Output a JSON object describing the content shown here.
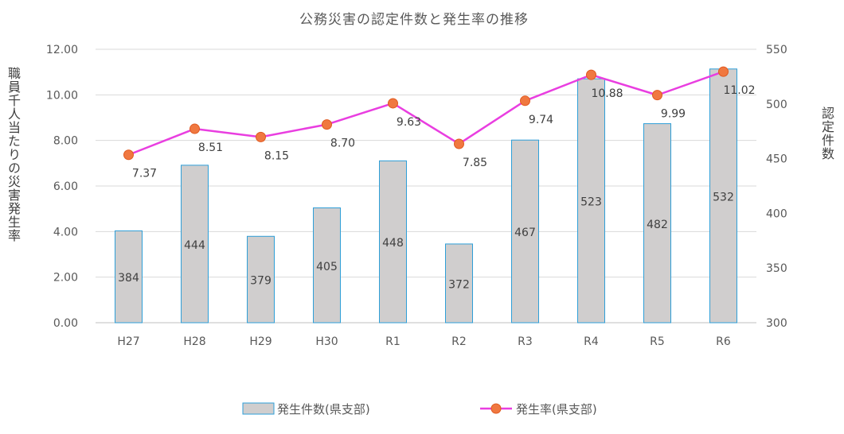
{
  "chart_data": {
    "type": "bar+line",
    "title": "公務災害の認定件数と発生率の推移",
    "categories": [
      "H27",
      "H28",
      "H29",
      "H30",
      "R1",
      "R2",
      "R3",
      "R4",
      "R5",
      "R6"
    ],
    "series": [
      {
        "name": "発生件数(県支部)",
        "type": "bar",
        "axis": "right",
        "values": [
          384,
          444,
          379,
          405,
          448,
          372,
          467,
          523,
          482,
          532
        ],
        "labels": [
          "384",
          "444",
          "379",
          "405",
          "448",
          "372",
          "467",
          "523",
          "482",
          "532"
        ],
        "color": "#d0cece",
        "border_color": "#2e9fd8"
      },
      {
        "name": "発生率(県支部)",
        "type": "line",
        "axis": "left",
        "values": [
          7.37,
          8.51,
          8.15,
          8.7,
          9.63,
          7.85,
          9.74,
          10.88,
          9.99,
          11.02
        ],
        "labels": [
          "7.37",
          "8.51",
          "8.15",
          "8.70",
          "9.63",
          "7.85",
          "9.74",
          "10.88",
          "9.99",
          "11.02"
        ],
        "line_color": "#e93ee0",
        "marker_color": "#f07840",
        "marker_border": "#e05a20"
      }
    ],
    "left_axis": {
      "label": "職員千人当たりの災害発生率",
      "range": [
        0,
        12
      ],
      "ticks": [
        "0.00",
        "2.00",
        "4.00",
        "6.00",
        "8.00",
        "10.00",
        "12.00"
      ]
    },
    "right_axis": {
      "label": "認定件数",
      "range": [
        300,
        550
      ],
      "ticks": [
        "300",
        "350",
        "400",
        "450",
        "500",
        "550"
      ]
    },
    "grid": true,
    "legend_position": "bottom"
  }
}
